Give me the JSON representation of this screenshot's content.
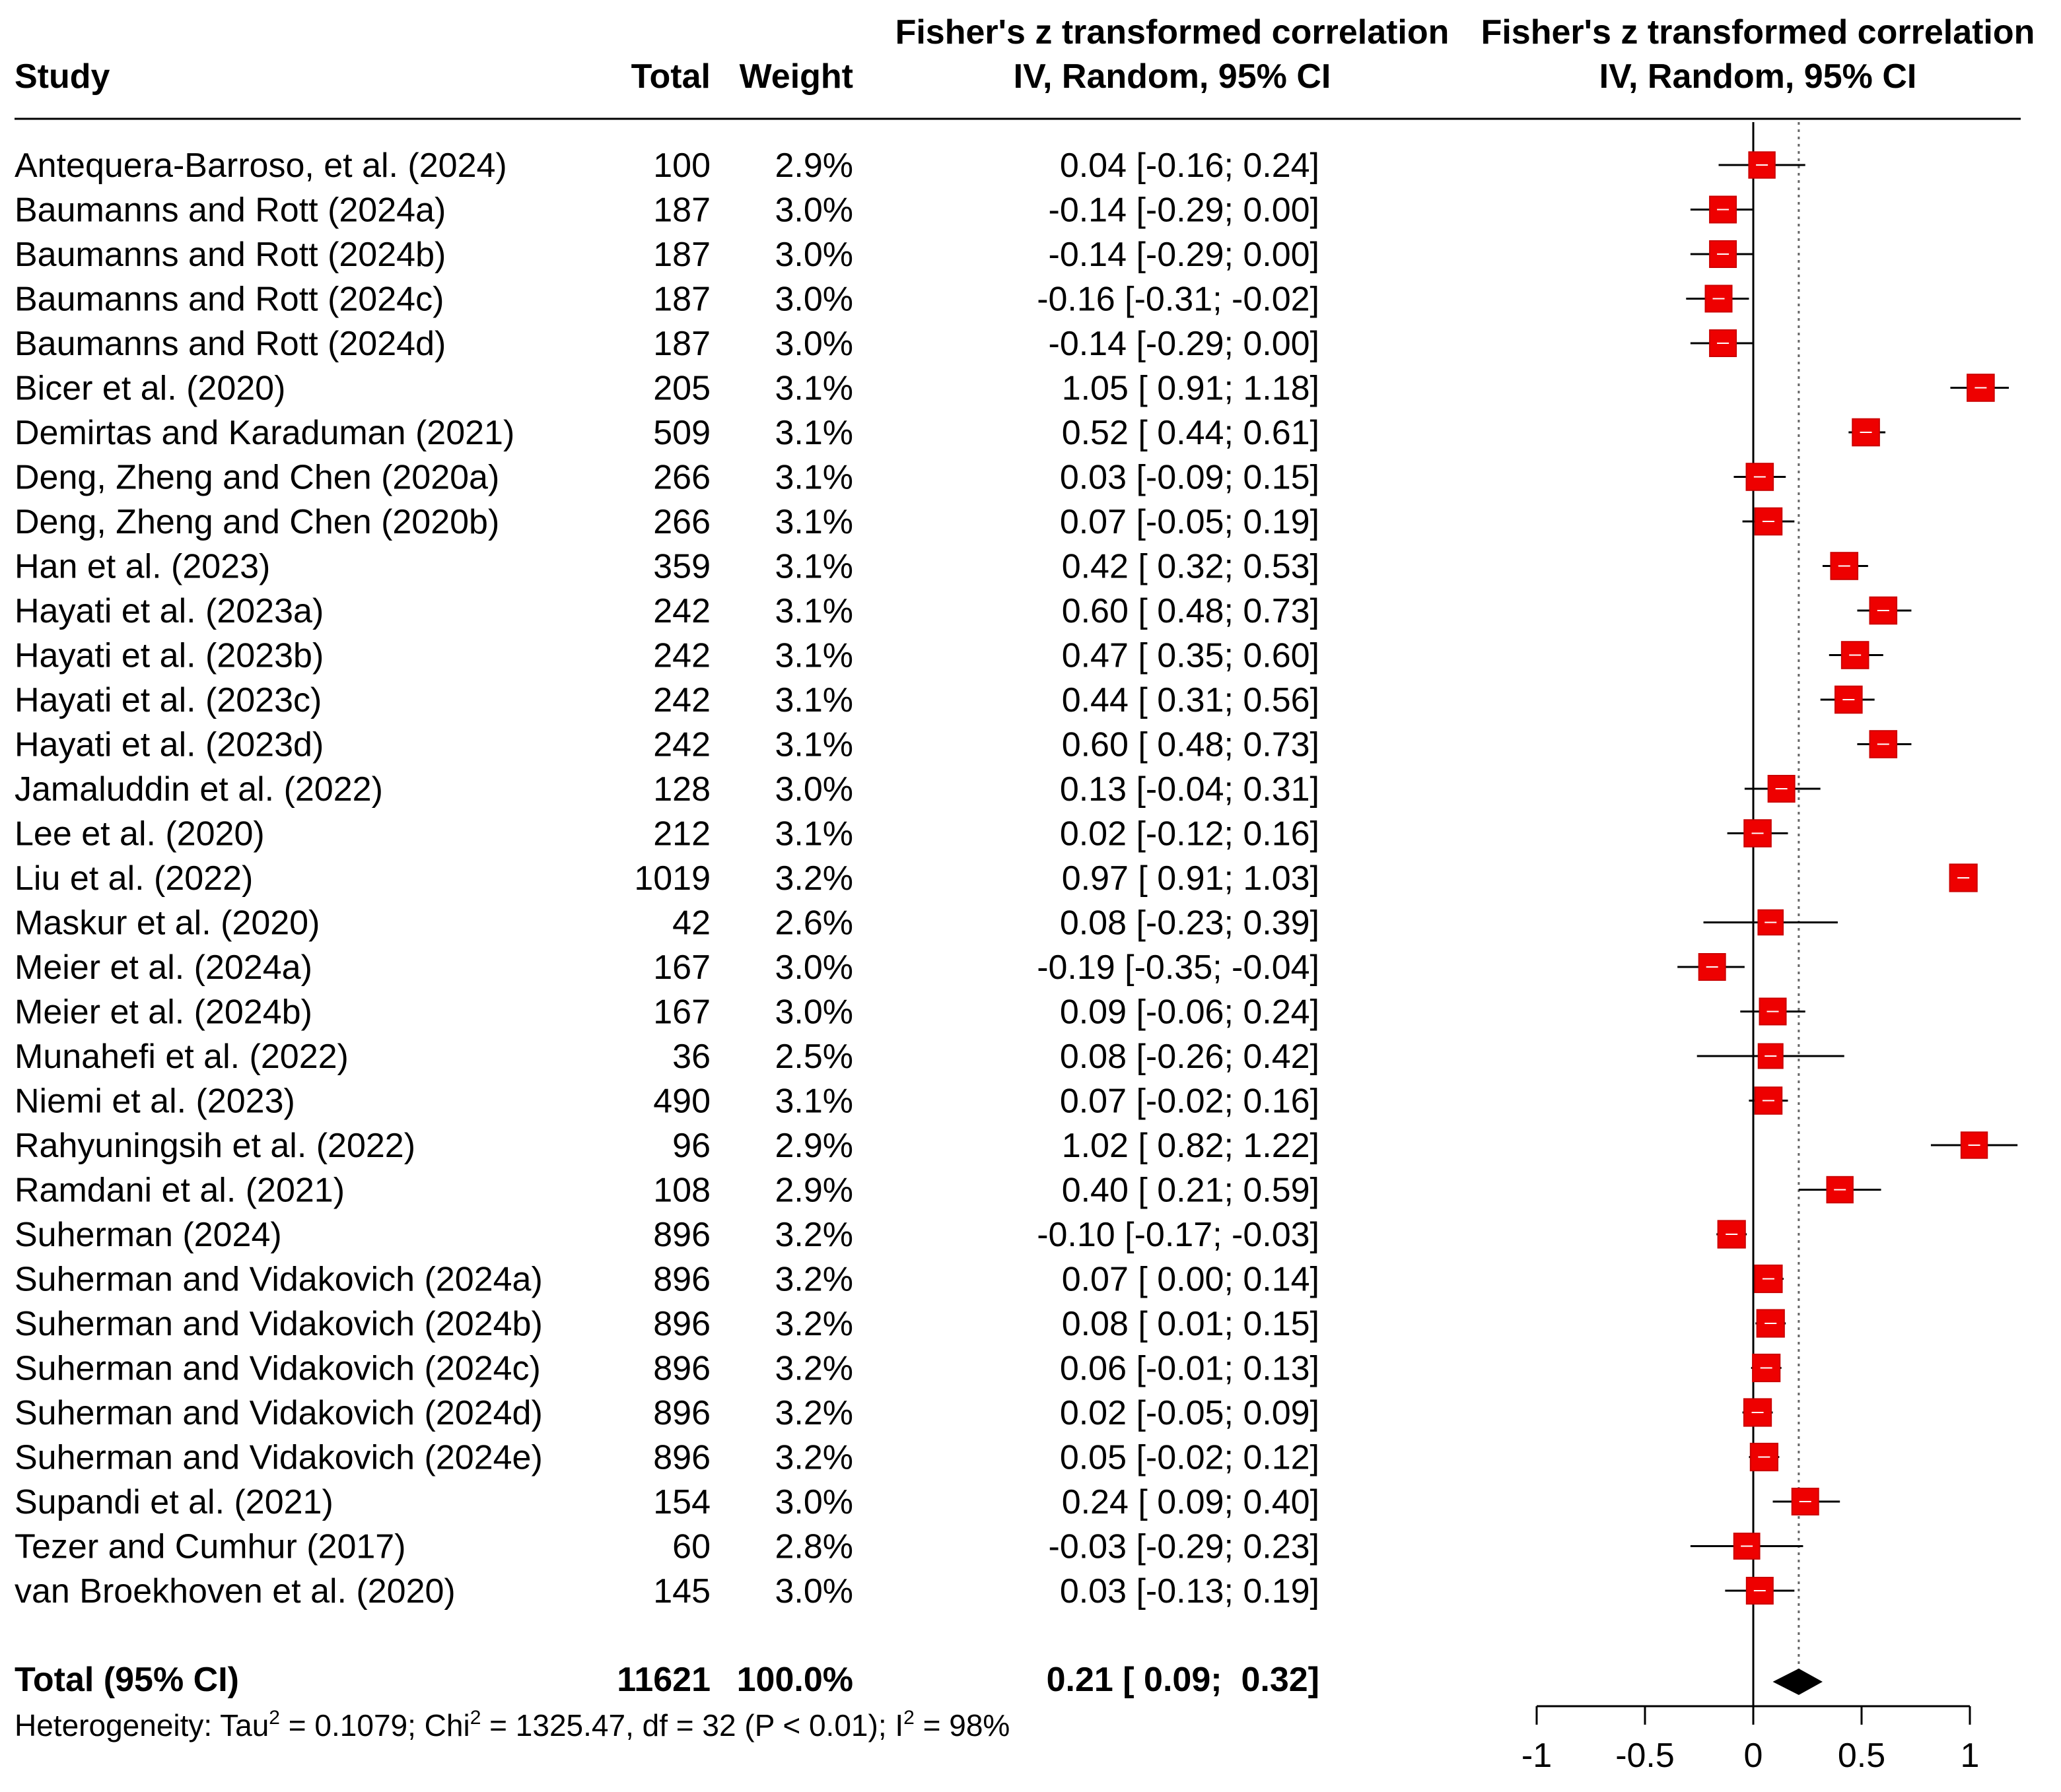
{
  "chart_data": {
    "type": "forest",
    "headers": {
      "study": "Study",
      "total": "Total",
      "weight": "Weight",
      "effect_line1": "Fisher's z transformed correlation",
      "effect_line2": "IV, Random, 95% CI",
      "plot_line1": "Fisher's z transformed correlation",
      "plot_line2": "IV, Random, 95% CI"
    },
    "studies": [
      {
        "name": "Antequera-Barroso, et al. (2024)",
        "total": "100",
        "weight": "2.9%",
        "est": 0.04,
        "lo": -0.16,
        "hi": 0.24,
        "label": "0.04 [-0.16;  0.24]"
      },
      {
        "name": "Baumanns and Rott (2024a)",
        "total": "187",
        "weight": "3.0%",
        "est": -0.14,
        "lo": -0.29,
        "hi": 0.0,
        "label": "-0.14 [-0.29;  0.00]"
      },
      {
        "name": "Baumanns and Rott (2024b)",
        "total": "187",
        "weight": "3.0%",
        "est": -0.14,
        "lo": -0.29,
        "hi": 0.0,
        "label": "-0.14 [-0.29;  0.00]"
      },
      {
        "name": "Baumanns and Rott (2024c)",
        "total": "187",
        "weight": "3.0%",
        "est": -0.16,
        "lo": -0.31,
        "hi": -0.02,
        "label": "-0.16 [-0.31; -0.02]"
      },
      {
        "name": "Baumanns and Rott (2024d)",
        "total": "187",
        "weight": "3.0%",
        "est": -0.14,
        "lo": -0.29,
        "hi": 0.0,
        "label": "-0.14 [-0.29;  0.00]"
      },
      {
        "name": "Bicer et al. (2020)",
        "total": "205",
        "weight": "3.1%",
        "est": 1.05,
        "lo": 0.91,
        "hi": 1.18,
        "label": "1.05 [ 0.91;  1.18]"
      },
      {
        "name": "Demirtas and Karaduman (2021)",
        "total": "509",
        "weight": "3.1%",
        "est": 0.52,
        "lo": 0.44,
        "hi": 0.61,
        "label": "0.52 [ 0.44;  0.61]"
      },
      {
        "name": "Deng, Zheng and Chen (2020a)",
        "total": "266",
        "weight": "3.1%",
        "est": 0.03,
        "lo": -0.09,
        "hi": 0.15,
        "label": "0.03 [-0.09;  0.15]"
      },
      {
        "name": "Deng, Zheng and Chen (2020b)",
        "total": "266",
        "weight": "3.1%",
        "est": 0.07,
        "lo": -0.05,
        "hi": 0.19,
        "label": "0.07 [-0.05;  0.19]"
      },
      {
        "name": "Han et al. (2023)",
        "total": "359",
        "weight": "3.1%",
        "est": 0.42,
        "lo": 0.32,
        "hi": 0.53,
        "label": "0.42 [ 0.32;  0.53]"
      },
      {
        "name": "Hayati et al. (2023a)",
        "total": "242",
        "weight": "3.1%",
        "est": 0.6,
        "lo": 0.48,
        "hi": 0.73,
        "label": "0.60 [ 0.48;  0.73]"
      },
      {
        "name": "Hayati et al. (2023b)",
        "total": "242",
        "weight": "3.1%",
        "est": 0.47,
        "lo": 0.35,
        "hi": 0.6,
        "label": "0.47 [ 0.35;  0.60]"
      },
      {
        "name": "Hayati et al. (2023c)",
        "total": "242",
        "weight": "3.1%",
        "est": 0.44,
        "lo": 0.31,
        "hi": 0.56,
        "label": "0.44 [ 0.31;  0.56]"
      },
      {
        "name": "Hayati et al. (2023d)",
        "total": "242",
        "weight": "3.1%",
        "est": 0.6,
        "lo": 0.48,
        "hi": 0.73,
        "label": "0.60 [ 0.48;  0.73]"
      },
      {
        "name": "Jamaluddin et al. (2022)",
        "total": "128",
        "weight": "3.0%",
        "est": 0.13,
        "lo": -0.04,
        "hi": 0.31,
        "label": "0.13 [-0.04;  0.31]"
      },
      {
        "name": "Lee et al. (2020)",
        "total": "212",
        "weight": "3.1%",
        "est": 0.02,
        "lo": -0.12,
        "hi": 0.16,
        "label": "0.02 [-0.12;  0.16]"
      },
      {
        "name": "Liu et al. (2022)",
        "total": "1019",
        "weight": "3.2%",
        "est": 0.97,
        "lo": 0.91,
        "hi": 1.03,
        "label": "0.97 [ 0.91;  1.03]"
      },
      {
        "name": "Maskur et al. (2020)",
        "total": "42",
        "weight": "2.6%",
        "est": 0.08,
        "lo": -0.23,
        "hi": 0.39,
        "label": "0.08 [-0.23;  0.39]"
      },
      {
        "name": "Meier et al. (2024a)",
        "total": "167",
        "weight": "3.0%",
        "est": -0.19,
        "lo": -0.35,
        "hi": -0.04,
        "label": "-0.19 [-0.35; -0.04]"
      },
      {
        "name": "Meier et al. (2024b)",
        "total": "167",
        "weight": "3.0%",
        "est": 0.09,
        "lo": -0.06,
        "hi": 0.24,
        "label": "0.09 [-0.06;  0.24]"
      },
      {
        "name": "Munahefi et al. (2022)",
        "total": "36",
        "weight": "2.5%",
        "est": 0.08,
        "lo": -0.26,
        "hi": 0.42,
        "label": "0.08 [-0.26;  0.42]"
      },
      {
        "name": "Niemi et al. (2023)",
        "total": "490",
        "weight": "3.1%",
        "est": 0.07,
        "lo": -0.02,
        "hi": 0.16,
        "label": "0.07 [-0.02;  0.16]"
      },
      {
        "name": "Rahyuningsih et al. (2022)",
        "total": "96",
        "weight": "2.9%",
        "est": 1.02,
        "lo": 0.82,
        "hi": 1.22,
        "label": "1.02 [ 0.82;  1.22]"
      },
      {
        "name": "Ramdani et al. (2021)",
        "total": "108",
        "weight": "2.9%",
        "est": 0.4,
        "lo": 0.21,
        "hi": 0.59,
        "label": "0.40 [ 0.21;  0.59]"
      },
      {
        "name": "Suherman (2024)",
        "total": "896",
        "weight": "3.2%",
        "est": -0.1,
        "lo": -0.17,
        "hi": -0.03,
        "label": "-0.10 [-0.17; -0.03]"
      },
      {
        "name": "Suherman and Vidakovich (2024a)",
        "total": "896",
        "weight": "3.2%",
        "est": 0.07,
        "lo": 0.0,
        "hi": 0.14,
        "label": "0.07 [ 0.00;  0.14]"
      },
      {
        "name": "Suherman and Vidakovich (2024b)",
        "total": "896",
        "weight": "3.2%",
        "est": 0.08,
        "lo": 0.01,
        "hi": 0.15,
        "label": "0.08 [ 0.01;  0.15]"
      },
      {
        "name": "Suherman and Vidakovich (2024c)",
        "total": "896",
        "weight": "3.2%",
        "est": 0.06,
        "lo": -0.01,
        "hi": 0.13,
        "label": "0.06 [-0.01;  0.13]"
      },
      {
        "name": "Suherman and Vidakovich (2024d)",
        "total": "896",
        "weight": "3.2%",
        "est": 0.02,
        "lo": -0.05,
        "hi": 0.09,
        "label": "0.02 [-0.05;  0.09]"
      },
      {
        "name": "Suherman and Vidakovich (2024e)",
        "total": "896",
        "weight": "3.2%",
        "est": 0.05,
        "lo": -0.02,
        "hi": 0.12,
        "label": "0.05 [-0.02;  0.12]"
      },
      {
        "name": "Supandi et al. (2021)",
        "total": "154",
        "weight": "3.0%",
        "est": 0.24,
        "lo": 0.09,
        "hi": 0.4,
        "label": "0.24 [ 0.09;  0.40]"
      },
      {
        "name": "Tezer and Cumhur (2017)",
        "total": "60",
        "weight": "2.8%",
        "est": -0.03,
        "lo": -0.29,
        "hi": 0.23,
        "label": "-0.03 [-0.29;  0.23]"
      },
      {
        "name": "van Broekhoven et al. (2020)",
        "total": "145",
        "weight": "3.0%",
        "est": 0.03,
        "lo": -0.13,
        "hi": 0.19,
        "label": "0.03 [-0.13;  0.19]"
      }
    ],
    "overall": {
      "name": "Total (95% CI)",
      "total": "11621",
      "weight": "100.0%",
      "est": 0.21,
      "lo": 0.09,
      "hi": 0.32,
      "label": "0.21 [ 0.09;  0.32]"
    },
    "heterogeneity": {
      "prefix": "Heterogeneity: Tau",
      "tau2": "= 0.1079; Chi",
      "chi2": "= 1325.47, df = 32 (P < 0.01); I",
      "i2": "= 98%",
      "sup": "2"
    },
    "x_axis": {
      "range": [
        -1,
        1
      ],
      "ticks": [
        -1,
        -0.5,
        0,
        0.5,
        1
      ],
      "tick_labels": [
        "-1",
        "-0.5",
        "0",
        "0.5",
        "1"
      ],
      "reference_line": 0,
      "summary_line": 0.21
    },
    "colors": {
      "marker_fill": "#ee0000",
      "marker_edge": "#cc0000",
      "line": "#000000",
      "diamond": "#000000",
      "dotted": "#666666"
    }
  }
}
